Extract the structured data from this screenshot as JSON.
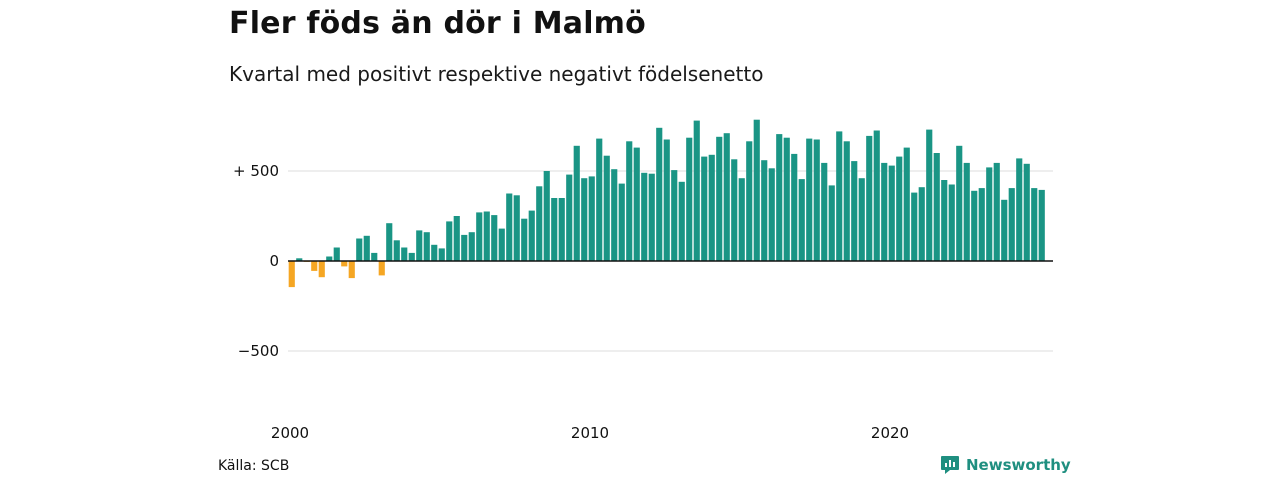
{
  "title": "Fler föds än dör i Malmö",
  "subtitle": "Kvartal med positivt respektive negativt födelsenetto",
  "source": "Källa: SCB",
  "brand": {
    "name": "Newsworthy",
    "icon": "newsworthy-logo-icon"
  },
  "colors": {
    "positive": "#1a9585",
    "negative": "#f5a623",
    "grid": "#dddddd",
    "zero": "#111111",
    "brand": "#1f8f80"
  },
  "chart_data": {
    "type": "bar",
    "title": "Fler föds än dör i Malmö",
    "subtitle": "Kvartal med positivt respektive negativt födelsenetto",
    "xlabel": "",
    "ylabel": "",
    "x_start": 2000,
    "x_step": 0.25,
    "x_ticks": [
      2000,
      2010,
      2020
    ],
    "x_tick_labels": [
      "2000",
      "2010",
      "2020"
    ],
    "xlim": [
      2000,
      2025.5
    ],
    "y_ticks": [
      500,
      0,
      -500
    ],
    "y_tick_labels": [
      "+ 500",
      "0",
      "−500"
    ],
    "ylim": [
      -800,
      800
    ],
    "grid": true,
    "series": [
      {
        "values": [
          -145,
          15,
          -5,
          -55,
          -90,
          25,
          75,
          -30,
          -95,
          125,
          140,
          45,
          -80,
          210,
          115,
          75,
          45,
          170,
          160,
          90,
          70,
          220,
          250,
          145,
          160,
          270,
          275,
          255,
          180,
          375,
          365,
          235,
          280,
          415,
          500,
          350,
          350,
          480,
          640,
          460,
          470,
          680,
          585,
          510,
          430,
          665,
          630,
          490,
          485,
          740,
          675,
          505,
          440,
          685,
          780,
          580,
          590,
          690,
          710,
          565,
          460,
          665,
          785,
          560,
          515,
          705,
          685,
          595,
          455,
          680,
          675,
          545,
          420,
          720,
          665,
          555,
          460,
          695,
          725,
          545,
          530,
          580,
          630,
          380,
          410,
          730,
          600,
          450,
          425,
          640,
          545,
          390,
          405,
          520,
          545,
          340,
          405,
          570,
          540,
          405,
          395
        ]
      }
    ]
  }
}
